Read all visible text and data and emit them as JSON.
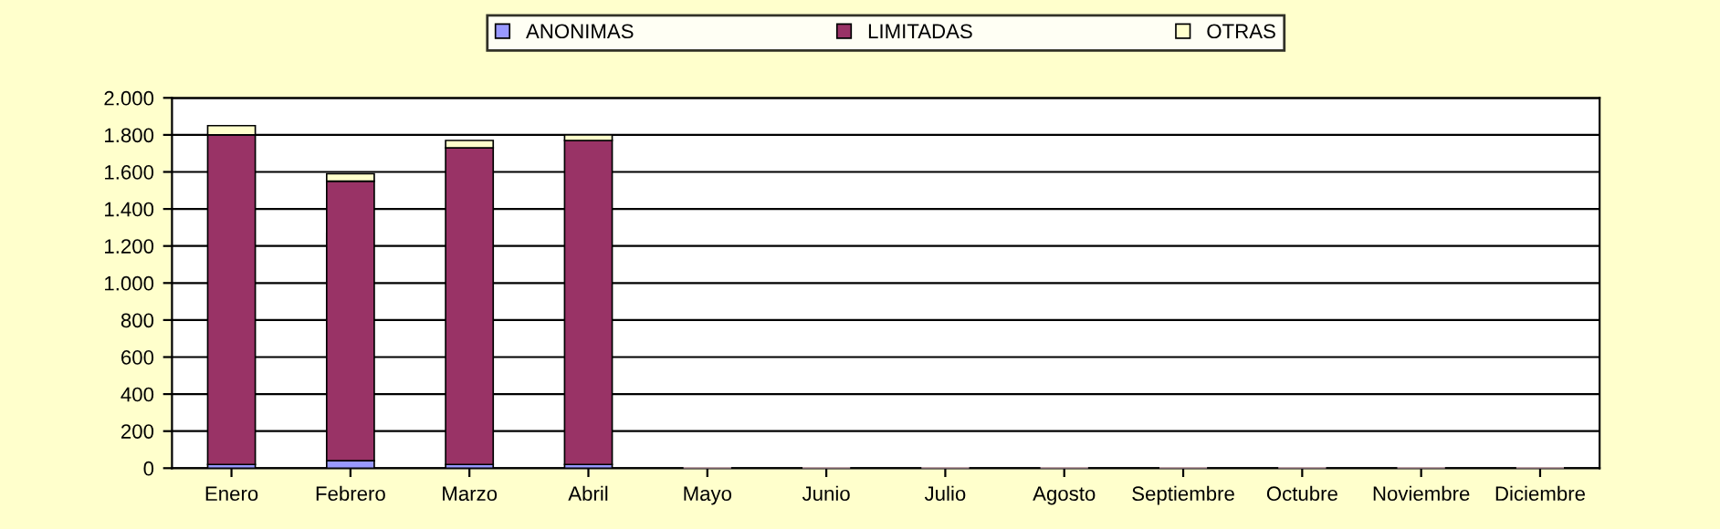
{
  "chart_data": {
    "type": "bar",
    "stacked": true,
    "categories": [
      "Enero",
      "Febrero",
      "Marzo",
      "Abril",
      "Mayo",
      "Junio",
      "Julio",
      "Agosto",
      "Septiembre",
      "Octubre",
      "Noviembre",
      "Diciembre"
    ],
    "series": [
      {
        "name": "ANONIMAS",
        "color": "#9999ff",
        "values": [
          20,
          40,
          20,
          20,
          0,
          0,
          0,
          0,
          0,
          0,
          0,
          0
        ]
      },
      {
        "name": "LIMITADAS",
        "color": "#993366",
        "values": [
          1780,
          1510,
          1710,
          1750,
          0,
          0,
          0,
          0,
          0,
          0,
          0,
          0
        ]
      },
      {
        "name": "OTRAS",
        "color": "#ffffcc",
        "values": [
          50,
          40,
          40,
          30,
          0,
          0,
          0,
          0,
          0,
          0,
          0,
          0
        ]
      }
    ],
    "ylim": [
      0,
      2000
    ],
    "yticks": [
      {
        "value": 0,
        "label": "0"
      },
      {
        "value": 200,
        "label": "200"
      },
      {
        "value": 400,
        "label": "400"
      },
      {
        "value": 600,
        "label": "600"
      },
      {
        "value": 800,
        "label": "800"
      },
      {
        "value": 1000,
        "label": "1.000"
      },
      {
        "value": 1200,
        "label": "1.200"
      },
      {
        "value": 1400,
        "label": "1.400"
      },
      {
        "value": 1600,
        "label": "1.600"
      },
      {
        "value": 1800,
        "label": "1.800"
      },
      {
        "value": 2000,
        "label": "2.000"
      }
    ],
    "grid": "y",
    "legend": "top"
  }
}
